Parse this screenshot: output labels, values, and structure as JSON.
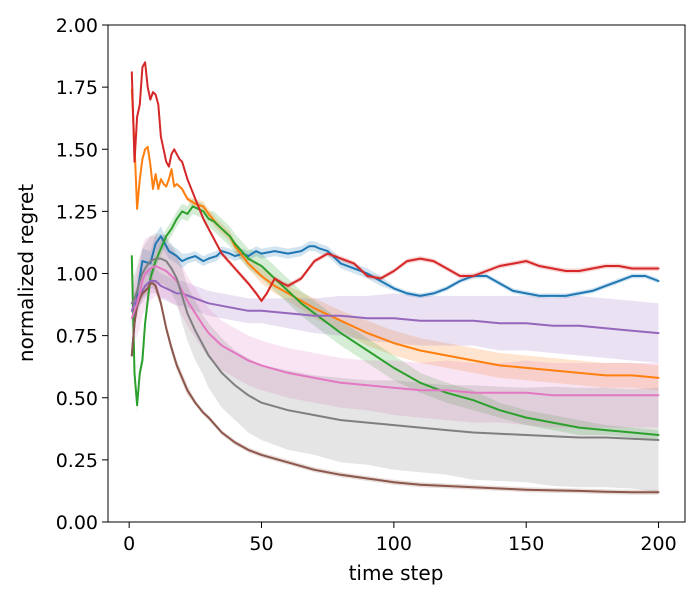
{
  "chart_data": {
    "type": "line",
    "title": "",
    "xlabel": "time step",
    "ylabel": "normalized regret",
    "xlim": [
      -8,
      210
    ],
    "ylim": [
      0,
      2.0
    ],
    "xticks": [
      0,
      50,
      100,
      150,
      200
    ],
    "xtick_labels": [
      "0",
      "50",
      "100",
      "150",
      "200"
    ],
    "yticks": [
      0,
      0.25,
      0.5,
      0.75,
      1.0,
      1.25,
      1.5,
      1.75,
      2.0
    ],
    "ytick_labels": [
      "0.00",
      "0.25",
      "0.50",
      "0.75",
      "1.00",
      "1.25",
      "1.50",
      "1.75",
      "2.00"
    ],
    "grid": false,
    "series": [
      {
        "name": "blue",
        "color": "#1f77b4",
        "x": [
          1,
          3,
          5,
          8,
          10,
          12,
          15,
          18,
          20,
          22,
          25,
          28,
          30,
          33,
          35,
          38,
          40,
          43,
          45,
          48,
          50,
          55,
          60,
          65,
          68,
          70,
          72,
          75,
          80,
          85,
          90,
          95,
          100,
          105,
          110,
          115,
          120,
          125,
          130,
          135,
          140,
          145,
          150,
          155,
          160,
          165,
          170,
          175,
          180,
          185,
          190,
          195,
          200
        ],
        "y": [
          0.67,
          0.92,
          1.05,
          1.04,
          1.12,
          1.15,
          1.09,
          1.07,
          1.05,
          1.06,
          1.07,
          1.05,
          1.06,
          1.07,
          1.09,
          1.08,
          1.07,
          1.08,
          1.07,
          1.09,
          1.08,
          1.09,
          1.08,
          1.09,
          1.11,
          1.11,
          1.1,
          1.09,
          1.04,
          1.02,
          1.0,
          0.97,
          0.94,
          0.92,
          0.91,
          0.92,
          0.94,
          0.97,
          0.99,
          0.99,
          0.96,
          0.93,
          0.92,
          0.91,
          0.91,
          0.91,
          0.92,
          0.93,
          0.95,
          0.97,
          0.99,
          0.99,
          0.97
        ],
        "band": [
          0.02,
          0.04,
          0.05,
          0.05,
          0.04,
          0.04,
          0.03,
          0.03,
          0.03,
          0.02,
          0.02,
          0.02,
          0.02,
          0.02,
          0.02,
          0.02,
          0.02,
          0.02,
          0.02,
          0.02,
          0.02,
          0.02,
          0.02,
          0.02,
          0.02,
          0.02,
          0.02,
          0.02,
          0.02,
          0.02,
          0.02,
          0.02,
          0.01,
          0.01,
          0.01,
          0.01,
          0.01,
          0.01,
          0.01,
          0.01,
          0.01,
          0.01,
          0.01,
          0.01,
          0.01,
          0.01,
          0.01,
          0.01,
          0.01,
          0.01,
          0.01,
          0.01,
          0.01
        ]
      },
      {
        "name": "orange",
        "color": "#ff7f0e",
        "x": [
          1,
          2,
          3,
          4,
          5,
          6,
          7,
          8,
          9,
          10,
          11,
          12,
          13,
          14,
          15,
          16,
          17,
          18,
          20,
          22,
          25,
          28,
          30,
          33,
          35,
          38,
          40,
          45,
          50,
          55,
          60,
          70,
          80,
          90,
          100,
          110,
          120,
          130,
          140,
          150,
          160,
          170,
          180,
          190,
          200
        ],
        "y": [
          1.74,
          1.52,
          1.26,
          1.38,
          1.46,
          1.5,
          1.51,
          1.44,
          1.34,
          1.4,
          1.34,
          1.38,
          1.36,
          1.35,
          1.38,
          1.42,
          1.35,
          1.36,
          1.34,
          1.3,
          1.28,
          1.27,
          1.24,
          1.2,
          1.18,
          1.15,
          1.11,
          1.04,
          0.99,
          0.95,
          0.92,
          0.86,
          0.81,
          0.76,
          0.72,
          0.69,
          0.67,
          0.65,
          0.63,
          0.62,
          0.61,
          0.6,
          0.59,
          0.59,
          0.58
        ],
        "band": [
          0.0,
          0.0,
          0.0,
          0.0,
          0.0,
          0.0,
          0.0,
          0.0,
          0.0,
          0.0,
          0.0,
          0.0,
          0.0,
          0.0,
          0.0,
          0.0,
          0.0,
          0.0,
          0.01,
          0.01,
          0.02,
          0.02,
          0.02,
          0.02,
          0.02,
          0.02,
          0.02,
          0.02,
          0.03,
          0.03,
          0.03,
          0.04,
          0.04,
          0.05,
          0.05,
          0.05,
          0.05,
          0.05,
          0.05,
          0.05,
          0.05,
          0.05,
          0.05,
          0.05,
          0.05
        ]
      },
      {
        "name": "green",
        "color": "#2ca02c",
        "x": [
          1,
          2,
          3,
          4,
          5,
          6,
          8,
          10,
          12,
          14,
          16,
          18,
          20,
          22,
          24,
          26,
          28,
          30,
          32,
          35,
          38,
          40,
          45,
          50,
          55,
          60,
          65,
          70,
          80,
          90,
          100,
          110,
          120,
          130,
          140,
          150,
          160,
          170,
          180,
          190,
          200
        ],
        "y": [
          1.07,
          0.6,
          0.47,
          0.6,
          0.65,
          0.8,
          0.98,
          1.05,
          1.1,
          1.15,
          1.18,
          1.22,
          1.25,
          1.24,
          1.27,
          1.26,
          1.25,
          1.22,
          1.21,
          1.18,
          1.15,
          1.12,
          1.06,
          1.03,
          0.98,
          0.93,
          0.88,
          0.84,
          0.76,
          0.69,
          0.62,
          0.56,
          0.52,
          0.49,
          0.45,
          0.42,
          0.4,
          0.38,
          0.37,
          0.36,
          0.35
        ],
        "band": [
          0.02,
          0.03,
          0.03,
          0.03,
          0.03,
          0.03,
          0.03,
          0.03,
          0.03,
          0.03,
          0.03,
          0.03,
          0.03,
          0.03,
          0.03,
          0.03,
          0.03,
          0.03,
          0.04,
          0.04,
          0.04,
          0.04,
          0.04,
          0.05,
          0.05,
          0.05,
          0.05,
          0.05,
          0.05,
          0.05,
          0.05,
          0.04,
          0.04,
          0.04,
          0.03,
          0.03,
          0.03,
          0.03,
          0.02,
          0.02,
          0.02
        ]
      },
      {
        "name": "red",
        "color": "#d62728",
        "x": [
          1,
          2,
          3,
          4,
          5,
          6,
          7,
          8,
          9,
          10,
          11,
          12,
          13,
          14,
          15,
          16,
          17,
          18,
          19,
          20,
          22,
          25,
          28,
          30,
          33,
          35,
          40,
          45,
          48,
          50,
          52,
          55,
          58,
          60,
          65,
          70,
          75,
          80,
          85,
          90,
          95,
          100,
          105,
          110,
          115,
          120,
          125,
          130,
          135,
          140,
          145,
          150,
          155,
          160,
          165,
          170,
          175,
          180,
          185,
          190,
          195,
          200
        ],
        "y": [
          1.81,
          1.45,
          1.63,
          1.68,
          1.83,
          1.85,
          1.75,
          1.7,
          1.73,
          1.72,
          1.68,
          1.55,
          1.5,
          1.45,
          1.43,
          1.48,
          1.5,
          1.48,
          1.46,
          1.45,
          1.38,
          1.3,
          1.22,
          1.18,
          1.12,
          1.08,
          1.02,
          0.96,
          0.92,
          0.89,
          0.92,
          0.98,
          0.96,
          0.95,
          0.98,
          1.05,
          1.08,
          1.06,
          1.04,
          0.99,
          0.98,
          1.01,
          1.05,
          1.06,
          1.05,
          1.02,
          0.99,
          0.99,
          1.01,
          1.03,
          1.04,
          1.05,
          1.03,
          1.02,
          1.01,
          1.01,
          1.02,
          1.03,
          1.03,
          1.02,
          1.02,
          1.02
        ],
        "band": [
          0.0,
          0.0,
          0.0,
          0.0,
          0.0,
          0.0,
          0.0,
          0.0,
          0.0,
          0.0,
          0.0,
          0.0,
          0.0,
          0.0,
          0.0,
          0.0,
          0.0,
          0.0,
          0.0,
          0.0,
          0.0,
          0.0,
          0.01,
          0.01,
          0.01,
          0.01,
          0.01,
          0.01,
          0.01,
          0.01,
          0.01,
          0.01,
          0.01,
          0.01,
          0.01,
          0.01,
          0.01,
          0.01,
          0.01,
          0.01,
          0.01,
          0.01,
          0.01,
          0.01,
          0.01,
          0.01,
          0.01,
          0.01,
          0.01,
          0.01,
          0.01,
          0.01,
          0.01,
          0.01,
          0.01,
          0.01,
          0.01,
          0.01,
          0.01,
          0.01,
          0.01,
          0.01
        ]
      },
      {
        "name": "purple",
        "color": "#9467bd",
        "x": [
          1,
          2,
          3,
          4,
          5,
          6,
          8,
          10,
          12,
          14,
          16,
          18,
          20,
          25,
          30,
          35,
          40,
          45,
          50,
          60,
          70,
          80,
          90,
          100,
          110,
          120,
          130,
          140,
          150,
          160,
          170,
          180,
          190,
          200
        ],
        "y": [
          0.85,
          0.88,
          0.9,
          0.92,
          0.93,
          0.95,
          0.97,
          0.97,
          0.95,
          0.94,
          0.93,
          0.92,
          0.92,
          0.9,
          0.88,
          0.87,
          0.86,
          0.85,
          0.85,
          0.84,
          0.83,
          0.83,
          0.82,
          0.82,
          0.81,
          0.81,
          0.81,
          0.8,
          0.8,
          0.79,
          0.79,
          0.78,
          0.77,
          0.76
        ],
        "band": [
          0.04,
          0.05,
          0.05,
          0.05,
          0.05,
          0.05,
          0.05,
          0.05,
          0.05,
          0.05,
          0.05,
          0.05,
          0.05,
          0.05,
          0.05,
          0.05,
          0.05,
          0.05,
          0.05,
          0.06,
          0.07,
          0.08,
          0.09,
          0.1,
          0.1,
          0.1,
          0.1,
          0.11,
          0.11,
          0.11,
          0.12,
          0.12,
          0.12,
          0.12
        ]
      },
      {
        "name": "brown",
        "color": "#8c564b",
        "x": [
          1,
          2,
          3,
          4,
          5,
          6,
          7,
          8,
          9,
          10,
          12,
          14,
          16,
          18,
          20,
          22,
          25,
          28,
          30,
          35,
          40,
          45,
          50,
          60,
          70,
          80,
          90,
          100,
          110,
          120,
          130,
          140,
          150,
          160,
          170,
          180,
          190,
          200
        ],
        "y": [
          0.67,
          0.8,
          0.87,
          0.9,
          0.92,
          0.93,
          0.94,
          0.96,
          0.96,
          0.95,
          0.88,
          0.78,
          0.7,
          0.63,
          0.58,
          0.53,
          0.48,
          0.44,
          0.42,
          0.36,
          0.32,
          0.29,
          0.27,
          0.24,
          0.21,
          0.19,
          0.175,
          0.16,
          0.15,
          0.145,
          0.14,
          0.135,
          0.13,
          0.127,
          0.125,
          0.122,
          0.12,
          0.12
        ],
        "band": [
          0.02,
          0.02,
          0.02,
          0.02,
          0.02,
          0.02,
          0.02,
          0.02,
          0.02,
          0.02,
          0.02,
          0.02,
          0.02,
          0.02,
          0.02,
          0.02,
          0.01,
          0.01,
          0.01,
          0.01,
          0.01,
          0.01,
          0.01,
          0.01,
          0.01,
          0.01,
          0.01,
          0.01,
          0.01,
          0.01,
          0.01,
          0.01,
          0.01,
          0.01,
          0.01,
          0.01,
          0.01,
          0.01
        ]
      },
      {
        "name": "pink",
        "color": "#e377c2",
        "x": [
          1,
          2,
          3,
          4,
          5,
          6,
          8,
          10,
          12,
          14,
          16,
          18,
          20,
          22,
          25,
          28,
          30,
          35,
          40,
          45,
          50,
          60,
          70,
          80,
          90,
          100,
          110,
          120,
          130,
          140,
          150,
          160,
          170,
          180,
          190,
          200
        ],
        "y": [
          0.82,
          0.85,
          0.88,
          0.92,
          0.97,
          1.0,
          1.02,
          1.03,
          1.02,
          1.01,
          0.99,
          0.97,
          0.93,
          0.89,
          0.84,
          0.79,
          0.76,
          0.71,
          0.68,
          0.65,
          0.63,
          0.6,
          0.58,
          0.56,
          0.55,
          0.54,
          0.53,
          0.53,
          0.52,
          0.52,
          0.52,
          0.51,
          0.51,
          0.51,
          0.51,
          0.51
        ],
        "band": [
          0.1,
          0.12,
          0.13,
          0.14,
          0.14,
          0.14,
          0.13,
          0.12,
          0.12,
          0.11,
          0.11,
          0.1,
          0.1,
          0.1,
          0.1,
          0.1,
          0.1,
          0.1,
          0.1,
          0.1,
          0.1,
          0.1,
          0.1,
          0.1,
          0.1,
          0.11,
          0.11,
          0.12,
          0.12,
          0.12,
          0.13,
          0.13,
          0.13,
          0.13,
          0.13,
          0.13
        ]
      },
      {
        "name": "gray",
        "color": "#7f7f7f",
        "x": [
          1,
          2,
          3,
          4,
          5,
          6,
          8,
          10,
          12,
          14,
          16,
          18,
          20,
          22,
          25,
          28,
          30,
          35,
          40,
          45,
          50,
          60,
          70,
          80,
          90,
          100,
          110,
          120,
          130,
          140,
          150,
          160,
          170,
          180,
          190,
          200
        ],
        "y": [
          0.88,
          0.9,
          0.93,
          0.97,
          1.0,
          1.02,
          1.05,
          1.06,
          1.06,
          1.05,
          1.02,
          0.98,
          0.91,
          0.84,
          0.77,
          0.71,
          0.67,
          0.6,
          0.55,
          0.51,
          0.48,
          0.45,
          0.43,
          0.41,
          0.4,
          0.39,
          0.38,
          0.37,
          0.36,
          0.355,
          0.35,
          0.345,
          0.34,
          0.34,
          0.335,
          0.33
        ],
        "band": [
          0.1,
          0.1,
          0.1,
          0.1,
          0.1,
          0.1,
          0.1,
          0.1,
          0.1,
          0.1,
          0.1,
          0.1,
          0.11,
          0.11,
          0.12,
          0.12,
          0.13,
          0.14,
          0.14,
          0.15,
          0.15,
          0.16,
          0.16,
          0.17,
          0.17,
          0.18,
          0.18,
          0.18,
          0.19,
          0.19,
          0.19,
          0.2,
          0.2,
          0.2,
          0.2,
          0.21
        ]
      }
    ]
  }
}
